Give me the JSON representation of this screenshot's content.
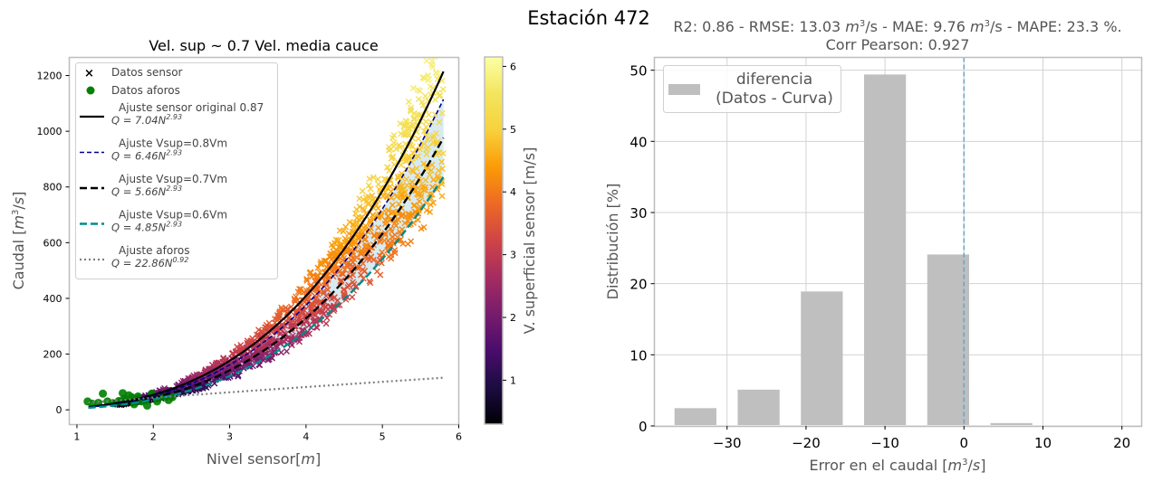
{
  "figure": {
    "suptitle": "Estación 472"
  },
  "chart_data": [
    {
      "type": "scatter",
      "title": "Vel. sup ~ 0.7 Vel. media cauce",
      "xlabel": "Nivel sensor[m]",
      "ylabel": "Caudal [m³/s]",
      "xlim": [
        0.9,
        6.0
      ],
      "ylim": [
        -53,
        1265
      ],
      "xticks": [
        1,
        2,
        3,
        4,
        5,
        6
      ],
      "yticks": [
        0,
        200,
        400,
        600,
        800,
        1000,
        1200
      ],
      "grid": false,
      "legend_position": "top-left",
      "legend": [
        {
          "label": "Datos sensor",
          "marker": "x",
          "color": "#000000"
        },
        {
          "label": "Datos aforos",
          "marker": "o",
          "color": "#008000"
        },
        {
          "label": "Ajuste sensor original 0.87",
          "formula_coef": "Q = 7.04N",
          "formula_exp": "2.93",
          "line": "solid",
          "color": "#000000"
        },
        {
          "label": "Ajuste Vsup=0.8Vm",
          "formula_coef": "Q = 6.46N",
          "formula_exp": "2.93",
          "line": "dashed-fine",
          "color": "#00008b"
        },
        {
          "label": "Ajuste Vsup=0.7Vm",
          "formula_coef": "Q = 5.66N",
          "formula_exp": "2.93",
          "line": "dashed",
          "color": "#000000"
        },
        {
          "label": "Ajuste Vsup=0.6Vm",
          "formula_coef": "Q = 4.85N",
          "formula_exp": "2.93",
          "line": "dashed",
          "color": "#008b8b"
        },
        {
          "label": "Ajuste aforos",
          "formula_coef": "Q = 22.86N",
          "formula_exp": "0.92",
          "line": "dotted",
          "color": "#808080"
        }
      ],
      "fits": [
        {
          "name": "Ajuste sensor original 0.87",
          "a": 7.04,
          "b": 2.93,
          "x_range": [
            1.15,
            5.8
          ]
        },
        {
          "name": "Ajuste Vsup=0.8Vm",
          "a": 6.46,
          "b": 2.93,
          "x_range": [
            1.15,
            5.8
          ]
        },
        {
          "name": "Ajuste Vsup=0.7Vm",
          "a": 5.66,
          "b": 2.93,
          "x_range": [
            1.15,
            5.8
          ]
        },
        {
          "name": "Ajuste Vsup=0.6Vm",
          "a": 4.85,
          "b": 2.93,
          "x_range": [
            1.15,
            5.8
          ]
        },
        {
          "name": "Ajuste aforos",
          "a": 22.86,
          "b": 0.92,
          "x_range": [
            1.15,
            5.8
          ]
        }
      ],
      "band": {
        "between": [
          "Ajuste Vsup=0.8Vm",
          "Ajuste Vsup=0.6Vm"
        ],
        "color": "#add8e6"
      },
      "sensor_points_description": "dense cloud of x markers following Q≈a·N^2.93 between N≈1.5 and 5.8, colored by surface velocity (inferno colormap)",
      "aforos_points": [
        {
          "x": 1.14,
          "y": 30
        },
        {
          "x": 1.2,
          "y": 22
        },
        {
          "x": 1.28,
          "y": 25
        },
        {
          "x": 1.34,
          "y": 58
        },
        {
          "x": 1.4,
          "y": 30
        },
        {
          "x": 1.47,
          "y": 24
        },
        {
          "x": 1.55,
          "y": 32
        },
        {
          "x": 1.62,
          "y": 40
        },
        {
          "x": 1.68,
          "y": 52
        },
        {
          "x": 1.72,
          "y": 45
        },
        {
          "x": 1.8,
          "y": 48
        },
        {
          "x": 1.85,
          "y": 30
        },
        {
          "x": 1.92,
          "y": 15
        },
        {
          "x": 1.98,
          "y": 58
        },
        {
          "x": 2.05,
          "y": 30
        },
        {
          "x": 2.12,
          "y": 48
        },
        {
          "x": 2.2,
          "y": 35
        },
        {
          "x": 2.25,
          "y": 45
        },
        {
          "x": 1.75,
          "y": 20
        },
        {
          "x": 1.6,
          "y": 60
        }
      ],
      "colorbar": {
        "label": "V. superficial sensor [m/s]",
        "colormap": "inferno",
        "range": [
          0.3,
          6.15
        ],
        "ticks": [
          1,
          2,
          3,
          4,
          5,
          6
        ]
      }
    },
    {
      "type": "bar",
      "title_line1": "R2: 0.86 - RMSE: 13.03 m³/s - MAE: 9.76 m³/s - MAPE: 23.3 %.",
      "title_line2": "Corr Pearson: 0.927",
      "title_parts": {
        "r2": "R2: 0.86 - RMSE: 13.03 ",
        "mae": "/s - MAE: 9.76 ",
        "mape": "/s - MAPE: 23.3 %."
      },
      "xlabel": "Error en el caudal  [m³/s]",
      "ylabel": "Distribución [%]",
      "xlim": [
        -39.2,
        22.5
      ],
      "ylim": [
        0,
        51.8
      ],
      "xticks": [
        -30,
        -20,
        -10,
        0,
        10,
        20
      ],
      "xtick_labels": [
        "−30",
        "−20",
        "−10",
        "0",
        "10",
        "20"
      ],
      "yticks": [
        0,
        10,
        20,
        30,
        40,
        50
      ],
      "grid": true,
      "legend_position": "top-left",
      "legend": [
        {
          "label_line1": "diferencia",
          "label_line2": "(Datos - Curva)",
          "color": "#bfbfbf"
        }
      ],
      "bar_width": 5.3,
      "categories": [
        -34,
        -26,
        -18,
        -10,
        -2,
        6
      ],
      "values": [
        2.5,
        5.1,
        18.9,
        49.4,
        24.1,
        0.4
      ],
      "vline": {
        "x": 0,
        "style": "dashed",
        "color": "#6aa3c8"
      }
    }
  ]
}
